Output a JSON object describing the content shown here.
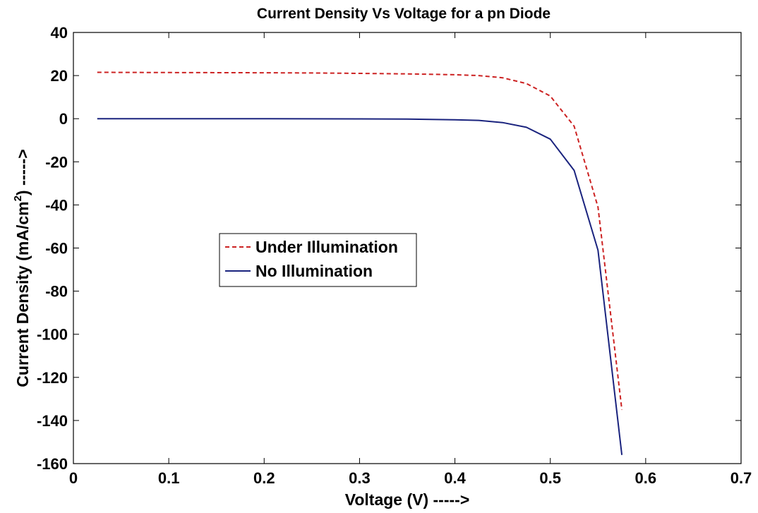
{
  "chart_data": {
    "type": "line",
    "title": "Current Density Vs Voltage for a pn Diode",
    "xlabel": "Voltage (V) ----->",
    "ylabel_main": "Current Density (mA/cm",
    "ylabel_sup": "2",
    "ylabel_tail": ") ----->",
    "xlim": [
      0,
      0.7
    ],
    "ylim": [
      -160,
      40
    ],
    "xticks": [
      0,
      0.1,
      0.2,
      0.3,
      0.4,
      0.5,
      0.6,
      0.7
    ],
    "xtick_labels": [
      "0",
      "0.1",
      "0.2",
      "0.3",
      "0.4",
      "0.5",
      "0.6",
      "0.7"
    ],
    "yticks": [
      40,
      20,
      0,
      -20,
      -40,
      -60,
      -80,
      -100,
      -120,
      -140,
      -160
    ],
    "ytick_labels": [
      "40",
      "20",
      "0",
      "-20",
      "-40",
      "-60",
      "-80",
      "-100",
      "-120",
      "-140",
      "-160"
    ],
    "grid": false,
    "legend_position": "center-left",
    "series": [
      {
        "name": "Under Illumination",
        "color": "#cc2222",
        "style": "dashed",
        "x": [
          0.025,
          0.1,
          0.2,
          0.25,
          0.3,
          0.35,
          0.4,
          0.425,
          0.45,
          0.475,
          0.5,
          0.525,
          0.55,
          0.575
        ],
        "y": [
          21.5,
          21.4,
          21.3,
          21.2,
          21.0,
          20.8,
          20.4,
          20.0,
          19.0,
          16.3,
          10.5,
          -3.5,
          -41.0,
          -135.0
        ]
      },
      {
        "name": "No Illumination",
        "color": "#1a237e",
        "style": "solid",
        "x": [
          0.025,
          0.1,
          0.2,
          0.3,
          0.35,
          0.4,
          0.425,
          0.45,
          0.475,
          0.5,
          0.525,
          0.55,
          0.575
        ],
        "y": [
          0,
          0,
          0,
          -0.1,
          -0.2,
          -0.5,
          -0.8,
          -1.8,
          -4.0,
          -9.5,
          -24.0,
          -61.0,
          -156.0
        ]
      }
    ]
  }
}
